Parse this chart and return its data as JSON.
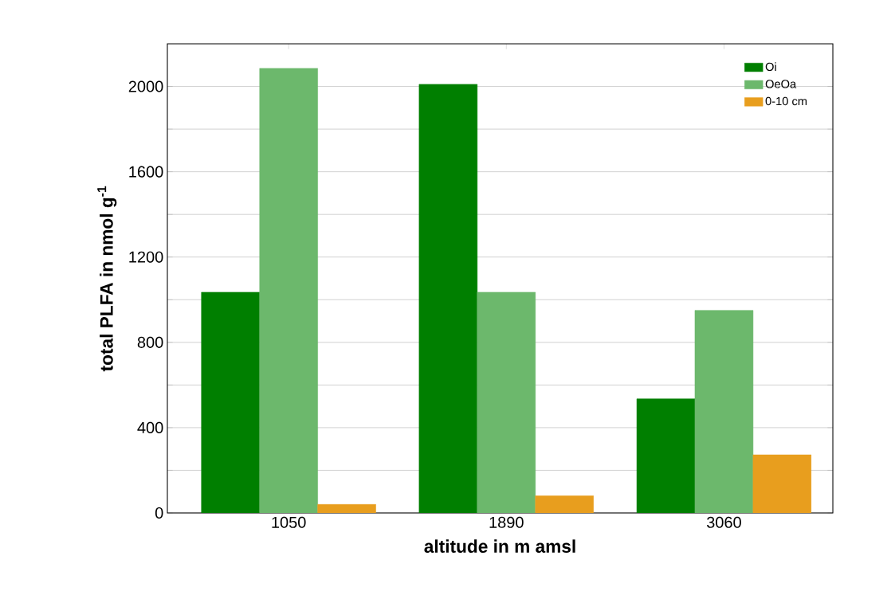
{
  "chart_data": {
    "type": "bar",
    "xlabel": "altitude in m amsl",
    "ylabel": "total PLFA in nmol g$^{-1}$",
    "categories": [
      "1050",
      "1890",
      "3060"
    ],
    "series": [
      {
        "name": "Oi",
        "color": "#007f00",
        "values": [
          1035,
          2010,
          535
        ]
      },
      {
        "name": "OeOa",
        "color": "#6cb86c",
        "values": [
          2085,
          1035,
          950
        ]
      },
      {
        "name": "0-10 cm",
        "color": "#e89e1e",
        "values": [
          40,
          80,
          273
        ]
      }
    ],
    "ylim": [
      0,
      2200
    ],
    "yticks": [
      0,
      {
        "value": 200,
        "label": null
      },
      400,
      {
        "value": 600,
        "label": null
      },
      800,
      {
        "value": 1000,
        "label": null
      },
      1200,
      {
        "value": 1400,
        "label": null
      },
      1600,
      {
        "value": 1800,
        "label": null
      },
      2000
    ],
    "grid": "y",
    "legend": "top right"
  }
}
